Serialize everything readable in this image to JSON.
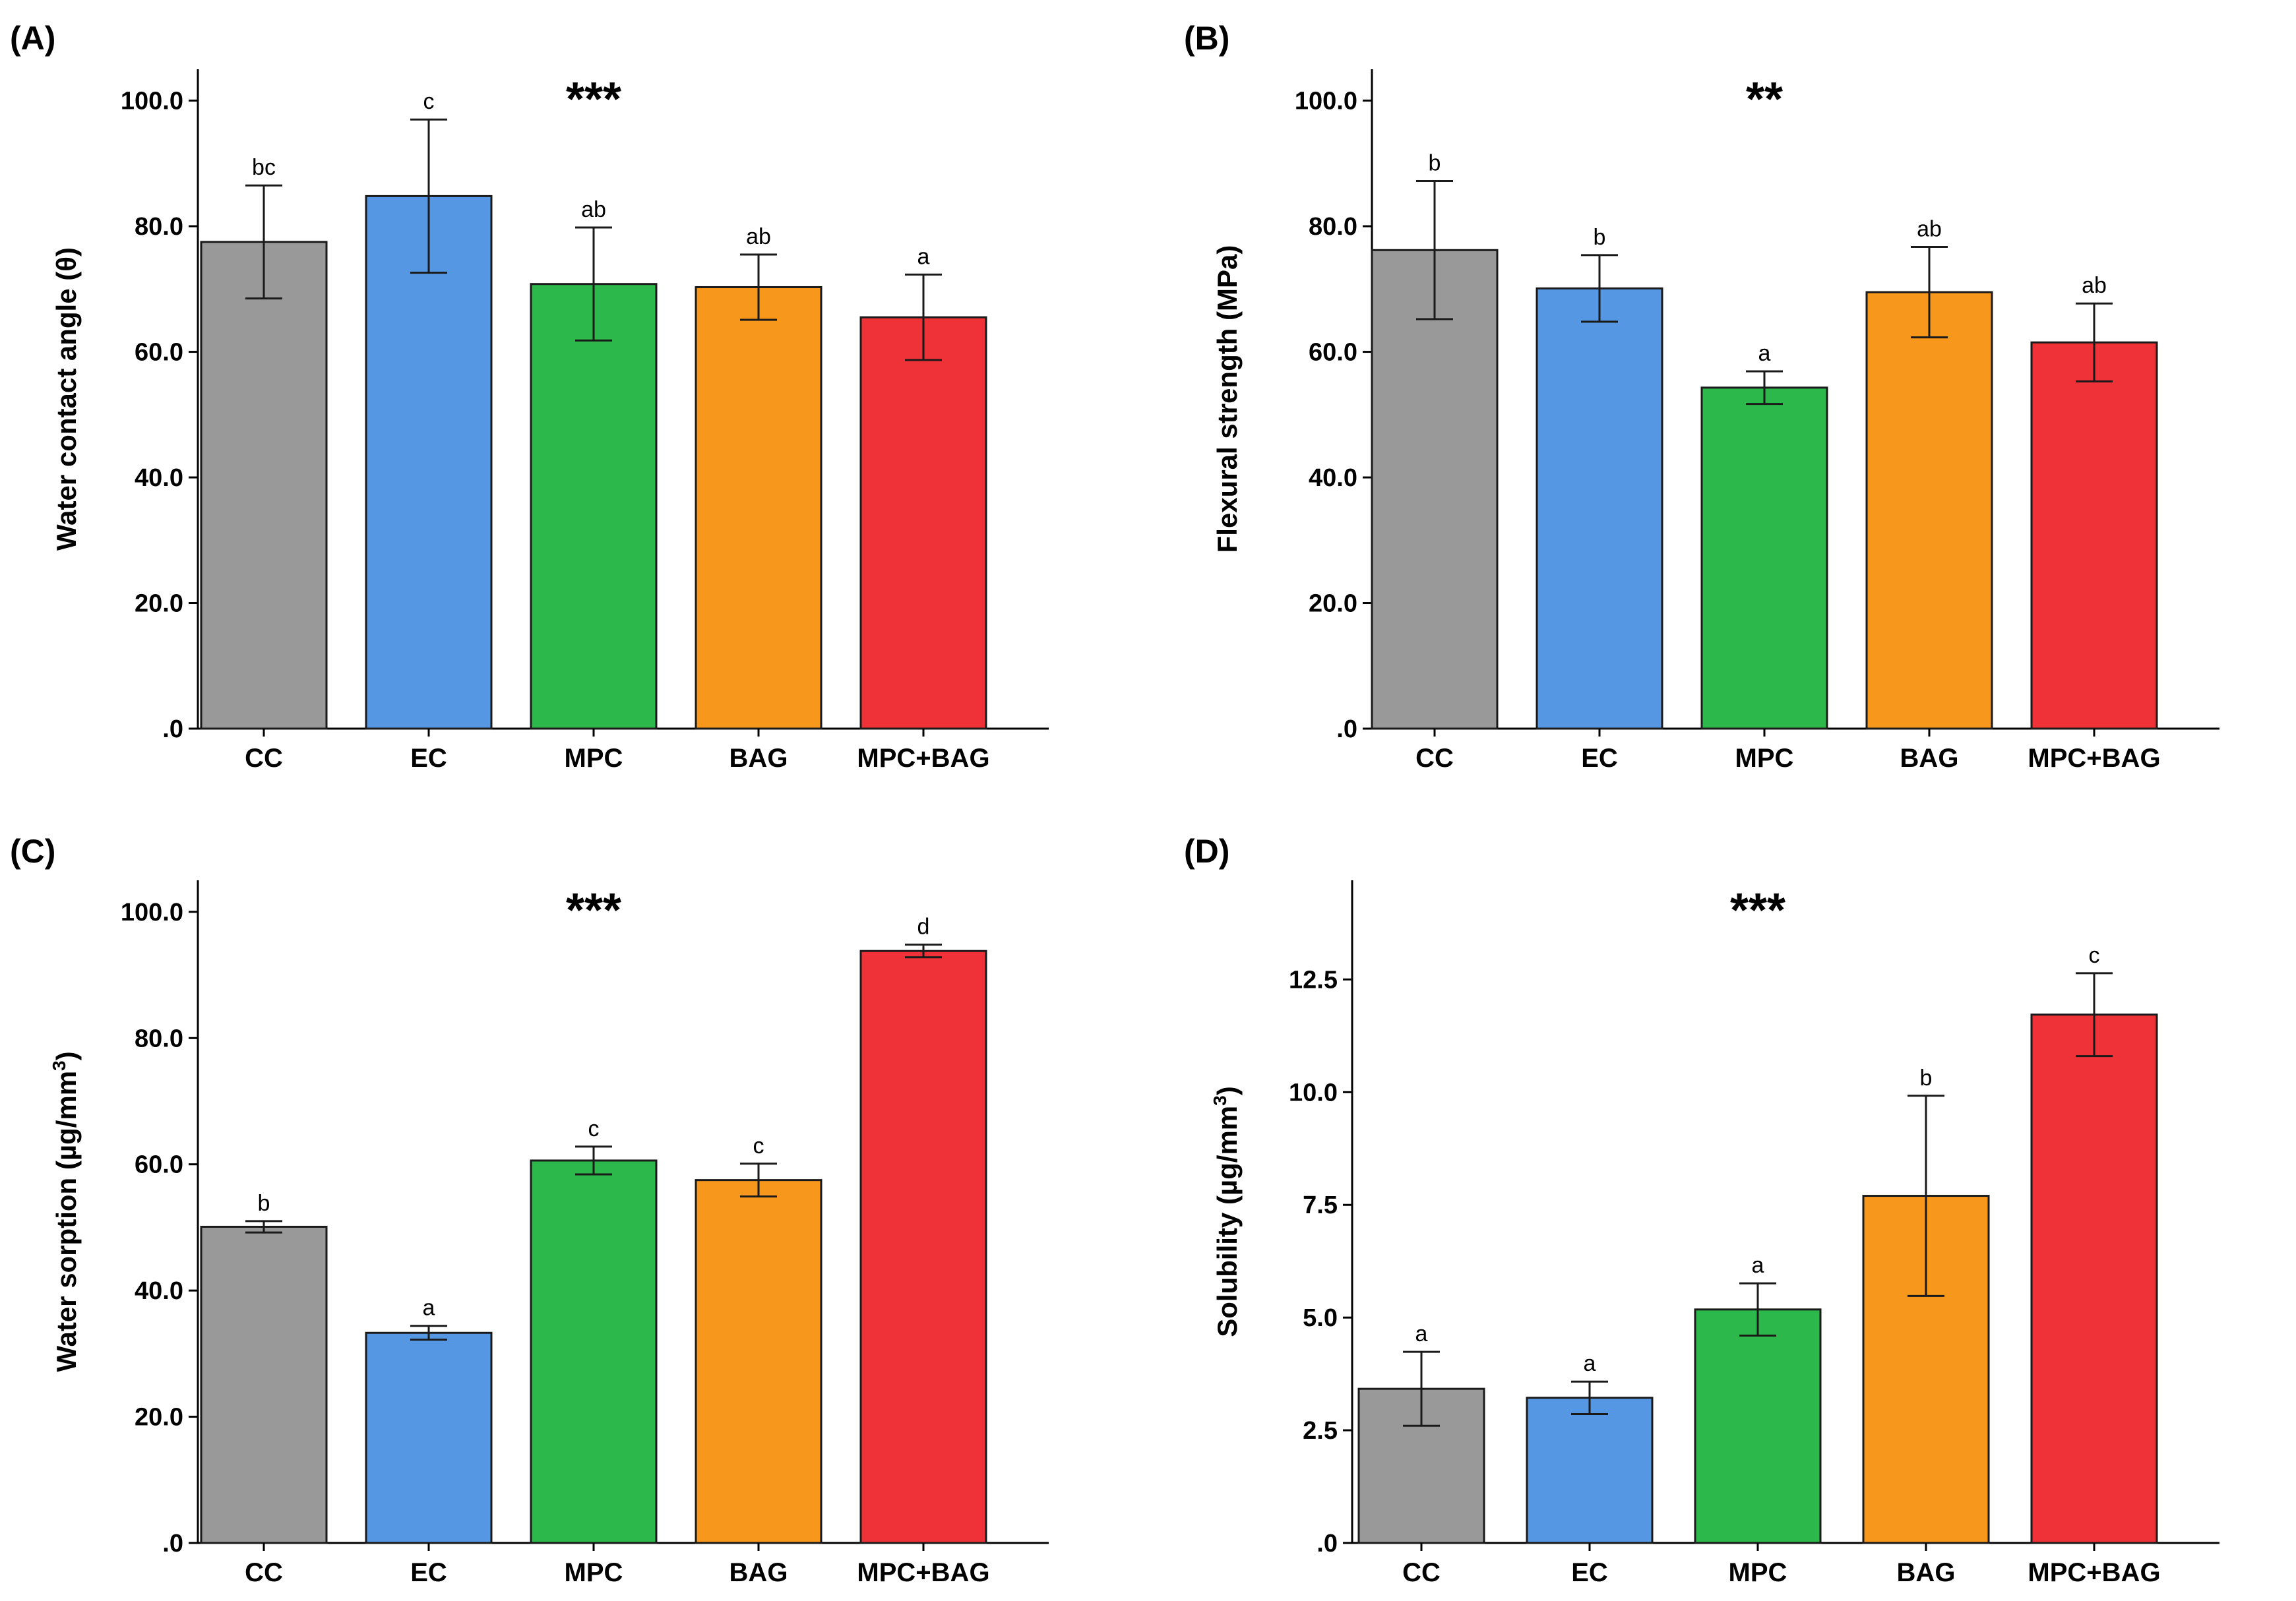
{
  "chart_data": [
    {
      "type": "bar",
      "panel": "(A)",
      "ylabel": "Water contact angle (θ)",
      "ylabel_sup": "",
      "ylabel_tail": "",
      "significance": "***",
      "categories": [
        "CC",
        "EC",
        "MPC",
        "BAG",
        "MPC+BAG"
      ],
      "values": [
        77.5,
        84.8,
        70.8,
        70.3,
        65.5
      ],
      "errors": [
        9.0,
        12.2,
        9.0,
        5.2,
        6.8
      ],
      "letters": [
        "bc",
        "c",
        "ab",
        "ab",
        "a"
      ],
      "ylim": [
        0,
        105
      ],
      "yticks": [
        0,
        20,
        40,
        60,
        80,
        100
      ],
      "ytick_labels": [
        ".0",
        "20.0",
        "40.0",
        "60.0",
        "80.0",
        "100.0"
      ],
      "colors": [
        "#999999",
        "#5597e3",
        "#2db84b",
        "#f7971c",
        "#ef3237"
      ]
    },
    {
      "type": "bar",
      "panel": "(B)",
      "ylabel": "Flexural strength (MPa)",
      "ylabel_sup": "",
      "ylabel_tail": "",
      "significance": "**",
      "categories": [
        "CC",
        "EC",
        "MPC",
        "BAG",
        "MPC+BAG"
      ],
      "values": [
        76.2,
        70.1,
        54.3,
        69.5,
        61.5
      ],
      "errors": [
        11.0,
        5.3,
        2.6,
        7.2,
        6.2
      ],
      "letters": [
        "b",
        "b",
        "a",
        "ab",
        "ab"
      ],
      "ylim": [
        0,
        105
      ],
      "yticks": [
        0,
        20,
        40,
        60,
        80,
        100
      ],
      "ytick_labels": [
        ".0",
        "20.0",
        "40.0",
        "60.0",
        "80.0",
        "100.0"
      ],
      "colors": [
        "#999999",
        "#5597e3",
        "#2db84b",
        "#f7971c",
        "#ef3237"
      ]
    },
    {
      "type": "bar",
      "panel": "(C)",
      "ylabel": "Water sorption (µg/mm",
      "ylabel_sup": "3",
      "ylabel_tail": ")",
      "significance": "***",
      "categories": [
        "CC",
        "EC",
        "MPC",
        "BAG",
        "MPC+BAG"
      ],
      "values": [
        50.1,
        33.3,
        60.6,
        57.5,
        93.8
      ],
      "errors": [
        0.9,
        1.1,
        2.2,
        2.6,
        1.0
      ],
      "letters": [
        "b",
        "a",
        "c",
        "c",
        "d"
      ],
      "ylim": [
        0,
        105
      ],
      "yticks": [
        0,
        20,
        40,
        60,
        80,
        100
      ],
      "ytick_labels": [
        ".0",
        "20.0",
        "40.0",
        "60.0",
        "80.0",
        "100.0"
      ],
      "colors": [
        "#999999",
        "#5597e3",
        "#2db84b",
        "#f7971c",
        "#ef3237"
      ]
    },
    {
      "type": "bar",
      "panel": "(D)",
      "ylabel": "Solubility (µg/mm",
      "ylabel_sup": "3",
      "ylabel_tail": ")",
      "significance": "***",
      "categories": [
        "CC",
        "EC",
        "MPC",
        "BAG",
        "MPC+BAG"
      ],
      "values": [
        3.42,
        3.22,
        5.18,
        7.7,
        11.72
      ],
      "errors": [
        0.82,
        0.36,
        0.58,
        2.22,
        0.92
      ],
      "letters": [
        "a",
        "a",
        "a",
        "b",
        "c"
      ],
      "ylim": [
        0,
        14.7
      ],
      "yticks": [
        0,
        2.5,
        5,
        7.5,
        10,
        12.5
      ],
      "ytick_labels": [
        ".0",
        "2.5",
        "5.0",
        "7.5",
        "10.0",
        "12.5"
      ],
      "colors": [
        "#999999",
        "#5597e3",
        "#2db84b",
        "#f7971c",
        "#ef3237"
      ]
    }
  ]
}
